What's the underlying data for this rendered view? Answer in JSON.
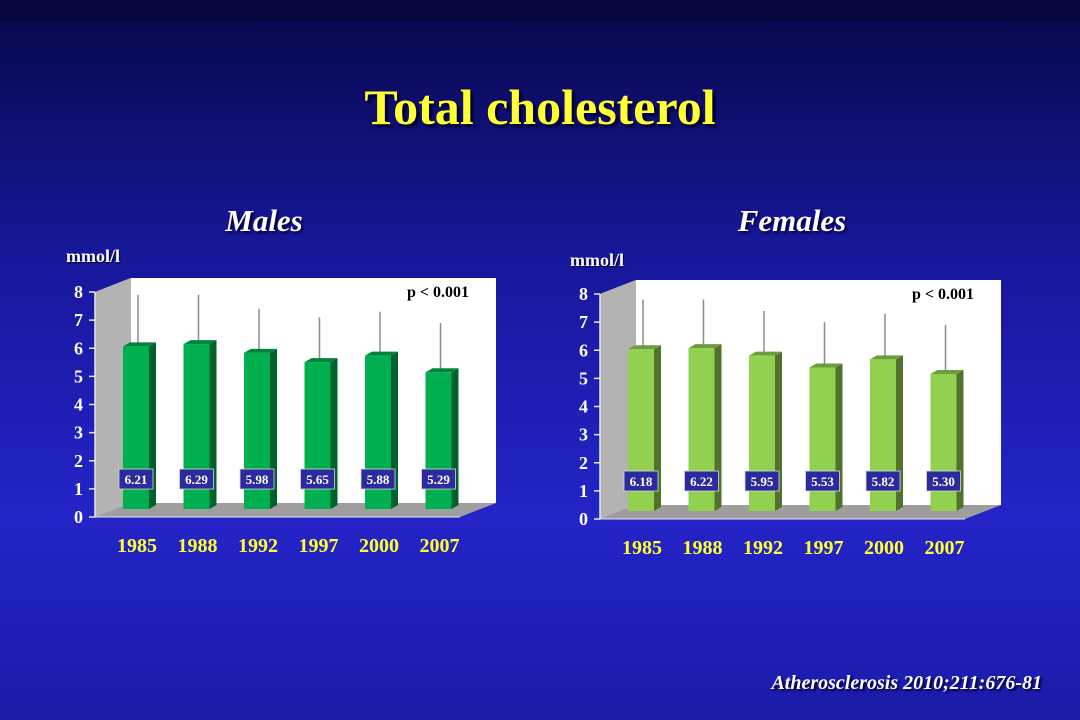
{
  "slide": {
    "title": "Total cholesterol",
    "citation": "Atherosclerosis 2010;211:676-81"
  },
  "colors": {
    "title": "#ffff33",
    "males_bar": "#00b050",
    "females_bar": "#92d050",
    "value_box": "#2b2b9e",
    "year_label": "#ffff33"
  },
  "chart_data": [
    {
      "type": "bar",
      "title": "Males",
      "ylabel": "mmol/l",
      "ylim": [
        0,
        8
      ],
      "y_ticks": [
        "0",
        "1",
        "2",
        "3",
        "4",
        "5",
        "6",
        "7",
        "8"
      ],
      "categories": [
        "1985",
        "1988",
        "1992",
        "1997",
        "2000",
        "2007"
      ],
      "values": [
        6.21,
        6.29,
        5.98,
        5.65,
        5.88,
        5.29
      ],
      "value_labels": [
        "6.21",
        "6.29",
        "5.98",
        "5.65",
        "5.88",
        "5.29"
      ],
      "error_bar_tops": [
        7.9,
        7.9,
        7.4,
        7.1,
        7.3,
        6.9
      ],
      "annotation": "p < 0.001",
      "grid": false,
      "style": "3d"
    },
    {
      "type": "bar",
      "title": "Females",
      "ylabel": "mmol/l",
      "ylim": [
        0,
        8
      ],
      "y_ticks": [
        "0",
        "1",
        "2",
        "3",
        "4",
        "5",
        "6",
        "7",
        "8"
      ],
      "categories": [
        "1985",
        "1988",
        "1992",
        "1997",
        "2000",
        "2007"
      ],
      "values": [
        6.18,
        6.22,
        5.95,
        5.53,
        5.82,
        5.3
      ],
      "value_labels": [
        "6.18",
        "6.22",
        "5.95",
        "5.53",
        "5.82",
        "5.30"
      ],
      "error_bar_tops": [
        7.8,
        7.8,
        7.4,
        7.0,
        7.3,
        6.9
      ],
      "annotation": "p < 0.001",
      "grid": false,
      "style": "3d"
    }
  ]
}
